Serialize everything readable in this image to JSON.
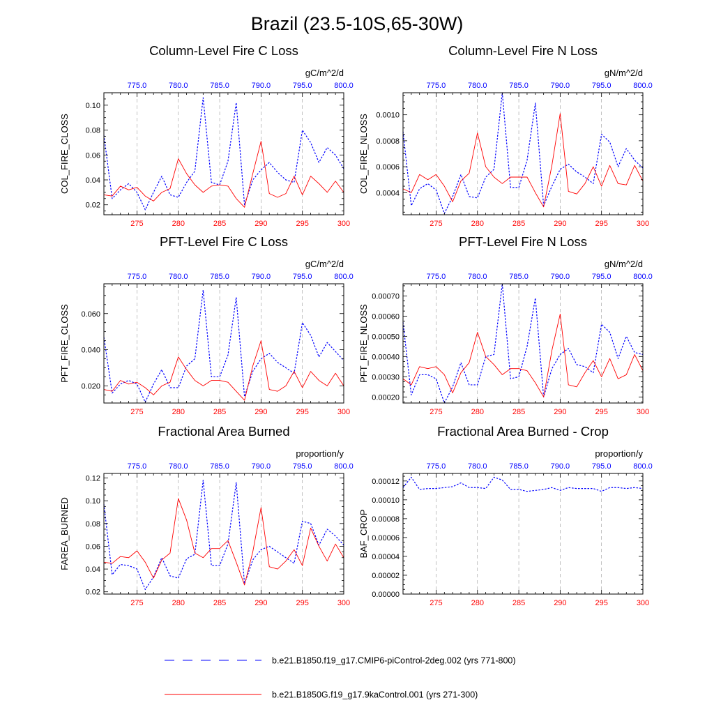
{
  "figure_title": "Brazil (23.5-10S,65-30W)",
  "colors": {
    "series_top": "#0000ff",
    "series_bottom": "#ff0000",
    "axis": "#000000",
    "grid": "#999999"
  },
  "legend": [
    {
      "label": "b.e21.B1850.f19_g17.CMIP6-piControl-2deg.002 (yrs 771-800)",
      "color": "#0000ff",
      "style": "dashed"
    },
    {
      "label": "b.e21.B1850G.f19_g17.9kaControl.001 (yrs 271-300)",
      "color": "#ff0000",
      "style": "solid"
    }
  ],
  "chart_data": [
    {
      "type": "line",
      "title": "Column-Level Fire C Loss",
      "units": "gC/m^2/d",
      "ylabel": "COL_FIRE_CLOSS",
      "ylim": [
        0.012,
        0.11
      ],
      "yticks": [
        0.02,
        0.04,
        0.06,
        0.08,
        0.1
      ],
      "ytick_labels": [
        "0.02",
        "0.04",
        "0.06",
        "0.08",
        "0.10"
      ],
      "x_bottom": {
        "range": [
          271,
          300
        ],
        "ticks": [
          275,
          280,
          285,
          290,
          295,
          300
        ]
      },
      "x_top": {
        "range": [
          771,
          800
        ],
        "ticks": [
          775,
          780,
          785,
          790,
          795,
          800
        ],
        "tick_labels": [
          "775.0",
          "780.0",
          "785.0",
          "790.0",
          "795.0",
          "800.0"
        ]
      },
      "series": [
        {
          "values": [
            0.076,
            0.025,
            0.032,
            0.037,
            0.03,
            0.016,
            0.03,
            0.043,
            0.028,
            0.026,
            0.038,
            0.047,
            0.106,
            0.038,
            0.036,
            0.055,
            0.102,
            0.02,
            0.04,
            0.048,
            0.054,
            0.046,
            0.04,
            0.038,
            0.08,
            0.07,
            0.054,
            0.066,
            0.06,
            0.049
          ]
        },
        {
          "values": [
            0.028,
            0.027,
            0.035,
            0.032,
            0.034,
            0.027,
            0.023,
            0.03,
            0.033,
            0.057,
            0.045,
            0.036,
            0.03,
            0.035,
            0.036,
            0.035,
            0.025,
            0.018,
            0.045,
            0.071,
            0.029,
            0.026,
            0.029,
            0.043,
            0.028,
            0.043,
            0.037,
            0.03,
            0.039,
            0.03
          ]
        }
      ]
    },
    {
      "type": "line",
      "title": "Column-Level Fire N Loss",
      "units": "gN/m^2/d",
      "ylabel": "COL_FIRE_NLOSS",
      "ylim": [
        0.00023,
        0.00117
      ],
      "yticks": [
        0.0004,
        0.0006,
        0.0008,
        0.001
      ],
      "ytick_labels": [
        "0.0004",
        "0.0006",
        "0.0008",
        "0.0010"
      ],
      "x_bottom": {
        "range": [
          271,
          300
        ],
        "ticks": [
          275,
          280,
          285,
          290,
          295,
          300
        ]
      },
      "x_top": {
        "range": [
          771,
          800
        ],
        "ticks": [
          775,
          780,
          785,
          790,
          795,
          800
        ],
        "tick_labels": [
          "775.0",
          "780.0",
          "785.0",
          "790.0",
          "795.0",
          "800.0"
        ]
      },
      "series": [
        {
          "values": [
            0.00087,
            0.0003,
            0.00043,
            0.00047,
            0.00042,
            0.00024,
            0.00037,
            0.00054,
            0.00037,
            0.00036,
            0.00052,
            0.00058,
            0.00117,
            0.00044,
            0.00044,
            0.00065,
            0.00109,
            0.0003,
            0.00045,
            0.00058,
            0.00062,
            0.00056,
            0.00052,
            0.00047,
            0.00085,
            0.00079,
            0.0006,
            0.00074,
            0.00065,
            0.00059
          ]
        },
        {
          "values": [
            0.00043,
            0.0004,
            0.00054,
            0.0005,
            0.00054,
            0.00045,
            0.00033,
            0.00049,
            0.00055,
            0.00086,
            0.0006,
            0.00052,
            0.00047,
            0.00052,
            0.00052,
            0.00052,
            0.0004,
            0.00029,
            0.00061,
            0.00101,
            0.00041,
            0.00039,
            0.00047,
            0.0006,
            0.00045,
            0.00061,
            0.00047,
            0.00046,
            0.00061,
            0.00049
          ]
        }
      ]
    },
    {
      "type": "line",
      "title": "PFT-Level Fire C Loss",
      "units": "gC/m^2/d",
      "ylabel": "PFT_FIRE_CLOSS",
      "ylim": [
        0.0105,
        0.0765
      ],
      "yticks": [
        0.02,
        0.04,
        0.06
      ],
      "ytick_labels": [
        "0.020",
        "0.040",
        "0.060"
      ],
      "x_bottom": {
        "range": [
          271,
          300
        ],
        "ticks": [
          275,
          280,
          285,
          290,
          295,
          300
        ]
      },
      "x_top": {
        "range": [
          771,
          800
        ],
        "ticks": [
          775,
          780,
          785,
          790,
          795,
          800
        ],
        "tick_labels": [
          "775.0",
          "780.0",
          "785.0",
          "790.0",
          "795.0",
          "800.0"
        ]
      },
      "series": [
        {
          "values": [
            0.047,
            0.016,
            0.021,
            0.023,
            0.021,
            0.011,
            0.021,
            0.029,
            0.019,
            0.019,
            0.031,
            0.035,
            0.073,
            0.025,
            0.025,
            0.037,
            0.069,
            0.014,
            0.028,
            0.035,
            0.038,
            0.033,
            0.03,
            0.027,
            0.055,
            0.048,
            0.036,
            0.044,
            0.039,
            0.034
          ]
        },
        {
          "values": [
            0.018,
            0.017,
            0.023,
            0.021,
            0.022,
            0.019,
            0.015,
            0.02,
            0.022,
            0.036,
            0.029,
            0.023,
            0.02,
            0.023,
            0.023,
            0.022,
            0.017,
            0.012,
            0.031,
            0.045,
            0.018,
            0.017,
            0.02,
            0.028,
            0.019,
            0.028,
            0.023,
            0.02,
            0.027,
            0.02
          ]
        }
      ]
    },
    {
      "type": "line",
      "title": "PFT-Level Fire N Loss",
      "units": "gN/m^2/d",
      "ylabel": "PFT_FIRE_NLOSS",
      "ylim": [
        0.00017,
        0.00076
      ],
      "yticks": [
        0.0002,
        0.0003,
        0.0004,
        0.0005,
        0.0006,
        0.0007
      ],
      "ytick_labels": [
        "0.00020",
        "0.00030",
        "0.00040",
        "0.00050",
        "0.00060",
        "0.00070"
      ],
      "x_bottom": {
        "range": [
          271,
          300
        ],
        "ticks": [
          275,
          280,
          285,
          290,
          295,
          300
        ]
      },
      "x_top": {
        "range": [
          771,
          800
        ],
        "ticks": [
          775,
          780,
          785,
          790,
          795,
          800
        ],
        "tick_labels": [
          "775.0",
          "780.0",
          "785.0",
          "790.0",
          "795.0",
          "800.0"
        ]
      },
      "series": [
        {
          "values": [
            0.00057,
            0.00021,
            0.00031,
            0.00031,
            0.00029,
            0.00017,
            0.00025,
            0.00037,
            0.00026,
            0.00026,
            0.0004,
            0.00041,
            0.00076,
            0.00029,
            0.0003,
            0.00045,
            0.00069,
            0.0002,
            0.00034,
            0.00041,
            0.00044,
            0.00036,
            0.00035,
            0.00032,
            0.00056,
            0.00052,
            0.00039,
            0.0005,
            0.00042,
            0.00041
          ]
        },
        {
          "values": [
            0.00029,
            0.00026,
            0.00035,
            0.00034,
            0.00035,
            0.00031,
            0.00022,
            0.00032,
            0.00037,
            0.00052,
            0.0004,
            0.00036,
            0.00031,
            0.00034,
            0.00034,
            0.00033,
            0.00027,
            0.0002,
            0.00043,
            0.00061,
            0.00026,
            0.00025,
            0.00032,
            0.00038,
            0.0003,
            0.00039,
            0.00029,
            0.00031,
            0.00041,
            0.00033
          ]
        }
      ]
    },
    {
      "type": "line",
      "title": "Fractional Area Burned",
      "units": "proportion/y",
      "ylabel": "FAREA_BURNED",
      "ylim": [
        0.018,
        0.124
      ],
      "yticks": [
        0.02,
        0.04,
        0.06,
        0.08,
        0.1,
        0.12
      ],
      "ytick_labels": [
        "0.02",
        "0.04",
        "0.06",
        "0.08",
        "0.10",
        "0.12"
      ],
      "x_bottom": {
        "range": [
          271,
          300
        ],
        "ticks": [
          275,
          280,
          285,
          290,
          295,
          300
        ]
      },
      "x_top": {
        "range": [
          771,
          800
        ],
        "ticks": [
          775,
          780,
          785,
          790,
          795,
          800
        ],
        "tick_labels": [
          "775.0",
          "780.0",
          "785.0",
          "790.0",
          "795.0",
          "800.0"
        ]
      },
      "series": [
        {
          "values": [
            0.097,
            0.035,
            0.044,
            0.043,
            0.04,
            0.022,
            0.033,
            0.05,
            0.034,
            0.032,
            0.049,
            0.053,
            0.118,
            0.043,
            0.043,
            0.062,
            0.116,
            0.027,
            0.048,
            0.057,
            0.06,
            0.055,
            0.05,
            0.045,
            0.082,
            0.08,
            0.061,
            0.075,
            0.069,
            0.061
          ]
        },
        {
          "values": [
            0.046,
            0.045,
            0.051,
            0.05,
            0.056,
            0.046,
            0.032,
            0.048,
            0.054,
            0.102,
            0.083,
            0.054,
            0.05,
            0.058,
            0.058,
            0.065,
            0.046,
            0.026,
            0.055,
            0.094,
            0.042,
            0.04,
            0.047,
            0.057,
            0.043,
            0.076,
            0.06,
            0.047,
            0.062,
            0.05
          ]
        }
      ]
    },
    {
      "type": "line",
      "title": "Fractional Area Burned - Crop",
      "units": "proportion/y",
      "ylabel": "BAF_CROP",
      "ylim": [
        0,
        0.000128
      ],
      "yticks": [
        0,
        2e-05,
        4e-05,
        6e-05,
        8e-05,
        0.0001,
        0.00012
      ],
      "ytick_labels": [
        "0.00000",
        "0.00002",
        "0.00004",
        "0.00006",
        "0.00008",
        "0.00010",
        "0.00012"
      ],
      "x_bottom": {
        "range": [
          271,
          300
        ],
        "ticks": [
          275,
          280,
          285,
          290,
          295,
          300
        ]
      },
      "x_top": {
        "range": [
          771,
          800
        ],
        "ticks": [
          775,
          780,
          785,
          790,
          795,
          800
        ],
        "tick_labels": [
          "775.0",
          "780.0",
          "785.0",
          "790.0",
          "795.0",
          "800.0"
        ]
      },
      "series": [
        {
          "values": [
            0.000113,
            0.000124,
            0.000111,
            0.000112,
            0.000112,
            0.000113,
            0.000114,
            0.000118,
            0.000113,
            0.000113,
            0.000112,
            0.000124,
            0.000121,
            0.000111,
            0.000111,
            0.000109,
            0.00011,
            0.000111,
            0.000113,
            0.00011,
            0.000113,
            0.000112,
            0.000112,
            0.000112,
            0.000109,
            0.000113,
            0.000113,
            0.000112,
            0.000113,
            0.000112
          ]
        }
      ]
    }
  ]
}
